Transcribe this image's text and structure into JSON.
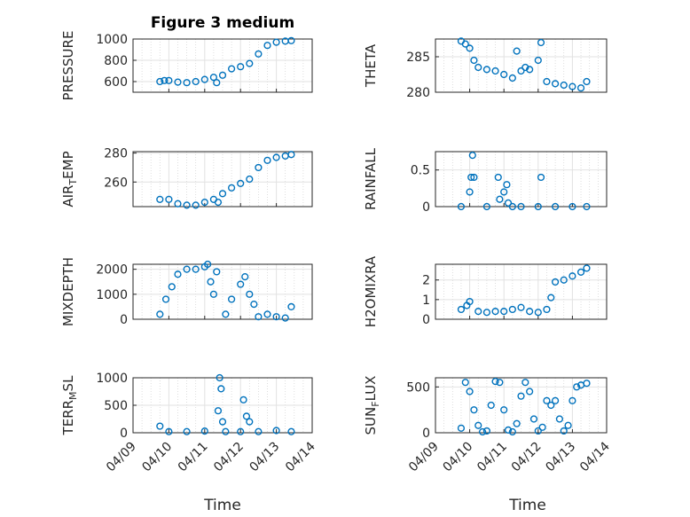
{
  "figure": {
    "title": "Figure 3 medium",
    "xlabel": "Time",
    "x_ticks": [
      "04/09",
      "04/10",
      "04/11",
      "04/12",
      "04/13",
      "04/14"
    ],
    "marker_color": "#0072BD"
  },
  "chart_data": [
    {
      "type": "scatter",
      "ylabel": "PRESSURE",
      "ylim": [
        500,
        1000
      ],
      "yticks": [
        600,
        800,
        1000
      ],
      "grid": true,
      "x": [
        "04/09 18:00",
        "04/09 21:00",
        "04/10 00:00",
        "04/10 06:00",
        "04/10 12:00",
        "04/10 18:00",
        "04/11 00:00",
        "04/11 06:00",
        "04/11 08:00",
        "04/11 12:00",
        "04/11 18:00",
        "04/12 00:00",
        "04/12 06:00",
        "04/12 12:00",
        "04/12 18:00",
        "04/13 00:00",
        "04/13 06:00",
        "04/13 10:00"
      ],
      "y": [
        600,
        610,
        610,
        595,
        590,
        600,
        620,
        640,
        590,
        660,
        720,
        740,
        770,
        860,
        940,
        970,
        980,
        985
      ]
    },
    {
      "type": "scatter",
      "ylabel": "THETA",
      "ylim": [
        280,
        287.5
      ],
      "yticks": [
        280,
        285
      ],
      "grid": true,
      "x": [
        "04/09 18:00",
        "04/09 21:00",
        "04/10 00:00",
        "04/10 03:00",
        "04/10 06:00",
        "04/10 12:00",
        "04/10 18:00",
        "04/11 00:00",
        "04/11 06:00",
        "04/11 09:00",
        "04/11 12:00",
        "04/11 15:00",
        "04/11 18:00",
        "04/12 00:00",
        "04/12 02:00",
        "04/12 06:00",
        "04/12 12:00",
        "04/12 18:00",
        "04/13 00:00",
        "04/13 06:00",
        "04/13 10:00"
      ],
      "y": [
        287.2,
        286.8,
        286.2,
        284.5,
        283.5,
        283.2,
        283.0,
        282.5,
        282.0,
        285.8,
        283.0,
        283.5,
        283.2,
        284.5,
        287.0,
        281.5,
        281.2,
        281.0,
        280.8,
        280.6,
        281.5
      ]
    },
    {
      "type": "scatter",
      "ylabel": "AIR_TEMP",
      "ylabel_main": "AIR",
      "ylabel_sub": "T",
      "ylabel_rest": "EMP",
      "ylim": [
        243,
        281
      ],
      "yticks": [
        260,
        280
      ],
      "grid": true,
      "x": [
        "04/09 18:00",
        "04/10 00:00",
        "04/10 06:00",
        "04/10 12:00",
        "04/10 18:00",
        "04/11 00:00",
        "04/11 06:00",
        "04/11 09:00",
        "04/11 12:00",
        "04/11 18:00",
        "04/12 00:00",
        "04/12 06:00",
        "04/12 12:00",
        "04/12 18:00",
        "04/13 00:00",
        "04/13 06:00",
        "04/13 10:00"
      ],
      "y": [
        248,
        248,
        245,
        244,
        244,
        246,
        248,
        246,
        252,
        256,
        259,
        262,
        270,
        275,
        277,
        278,
        279
      ]
    },
    {
      "type": "scatter",
      "ylabel": "RAINFALL",
      "ylim": [
        0,
        0.75
      ],
      "yticks": [
        0,
        0.5
      ],
      "grid": true,
      "x": [
        "04/09 18:00",
        "04/10 00:00",
        "04/10 01:00",
        "04/10 02:00",
        "04/10 03:00",
        "04/10 12:00",
        "04/10 20:00",
        "04/10 21:00",
        "04/11 00:00",
        "04/11 02:00",
        "04/11 03:00",
        "04/11 06:00",
        "04/11 12:00",
        "04/12 00:00",
        "04/12 02:00",
        "04/12 12:00",
        "04/13 00:00",
        "04/13 10:00"
      ],
      "y": [
        0,
        0.2,
        0.4,
        0.7,
        0.4,
        0,
        0.4,
        0.1,
        0.2,
        0.3,
        0.05,
        0,
        0,
        0,
        0.4,
        0,
        0,
        0
      ]
    },
    {
      "type": "scatter",
      "ylabel": "MIXDEPTH",
      "ylim": [
        0,
        2200
      ],
      "yticks": [
        0,
        1000,
        2000
      ],
      "grid": true,
      "x": [
        "04/09 18:00",
        "04/09 22:00",
        "04/10 02:00",
        "04/10 06:00",
        "04/10 12:00",
        "04/10 18:00",
        "04/11 00:00",
        "04/11 02:00",
        "04/11 04:00",
        "04/11 06:00",
        "04/11 08:00",
        "04/11 14:00",
        "04/11 18:00",
        "04/12 00:00",
        "04/12 03:00",
        "04/12 06:00",
        "04/12 09:00",
        "04/12 12:00",
        "04/12 18:00",
        "04/13 00:00",
        "04/13 06:00",
        "04/13 10:00"
      ],
      "y": [
        200,
        800,
        1300,
        1800,
        2000,
        2000,
        2100,
        2200,
        1500,
        1000,
        1900,
        200,
        800,
        1400,
        1700,
        1000,
        600,
        100,
        200,
        100,
        50,
        500
      ]
    },
    {
      "type": "scatter",
      "ylabel": "H2OMIXRA",
      "ylim": [
        0,
        2.8
      ],
      "yticks": [
        0,
        1,
        2
      ],
      "grid": true,
      "x": [
        "04/09 18:00",
        "04/09 22:00",
        "04/10 00:00",
        "04/10 06:00",
        "04/10 12:00",
        "04/10 18:00",
        "04/11 00:00",
        "04/11 06:00",
        "04/11 12:00",
        "04/11 18:00",
        "04/12 00:00",
        "04/12 06:00",
        "04/12 09:00",
        "04/12 12:00",
        "04/12 18:00",
        "04/13 00:00",
        "04/13 06:00",
        "04/13 10:00"
      ],
      "y": [
        0.5,
        0.7,
        0.9,
        0.4,
        0.35,
        0.4,
        0.4,
        0.5,
        0.6,
        0.4,
        0.35,
        0.5,
        1.1,
        1.9,
        2.0,
        2.2,
        2.4,
        2.6
      ]
    },
    {
      "type": "scatter",
      "ylabel": "TERR_MSL",
      "ylabel_main": "TERR",
      "ylabel_sub": "M",
      "ylabel_rest": "SL",
      "ylim": [
        0,
        1000
      ],
      "yticks": [
        0,
        500,
        1000
      ],
      "grid": true,
      "x": [
        "04/09 18:00",
        "04/10 00:00",
        "04/10 12:00",
        "04/11 00:00",
        "04/11 09:00",
        "04/11 10:00",
        "04/11 11:00",
        "04/11 12:00",
        "04/11 14:00",
        "04/12 00:00",
        "04/12 02:00",
        "04/12 04:00",
        "04/12 06:00",
        "04/12 12:00",
        "04/13 00:00",
        "04/13 10:00"
      ],
      "y": [
        120,
        20,
        20,
        30,
        400,
        1000,
        800,
        200,
        20,
        20,
        600,
        300,
        200,
        20,
        40,
        20
      ]
    },
    {
      "type": "scatter",
      "ylabel": "SUN_FLUX",
      "ylabel_main": "SUN",
      "ylabel_sub": "F",
      "ylabel_rest": "LUX",
      "ylim": [
        0,
        600
      ],
      "yticks": [
        0,
        500
      ],
      "grid": true,
      "x": [
        "04/09 18:00",
        "04/09 21:00",
        "04/10 00:00",
        "04/10 03:00",
        "04/10 06:00",
        "04/10 09:00",
        "04/10 12:00",
        "04/10 15:00",
        "04/10 18:00",
        "04/10 21:00",
        "04/11 00:00",
        "04/11 03:00",
        "04/11 06:00",
        "04/11 09:00",
        "04/11 12:00",
        "04/11 15:00",
        "04/11 18:00",
        "04/11 21:00",
        "04/12 00:00",
        "04/12 03:00",
        "04/12 06:00",
        "04/12 09:00",
        "04/12 12:00",
        "04/12 15:00",
        "04/12 18:00",
        "04/12 21:00",
        "04/13 00:00",
        "04/13 03:00",
        "04/13 06:00",
        "04/13 10:00"
      ],
      "y": [
        50,
        550,
        450,
        250,
        80,
        10,
        20,
        300,
        560,
        550,
        250,
        30,
        10,
        100,
        400,
        550,
        450,
        150,
        20,
        60,
        350,
        300,
        350,
        150,
        20,
        80,
        350,
        500,
        520,
        540
      ]
    }
  ]
}
